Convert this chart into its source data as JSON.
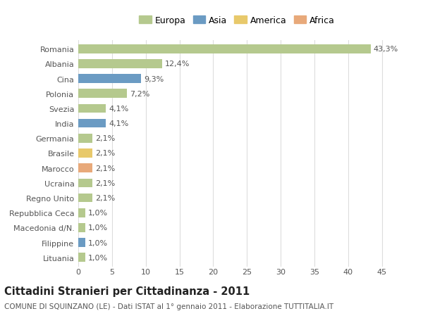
{
  "countries": [
    "Romania",
    "Albania",
    "Cina",
    "Polonia",
    "Svezia",
    "India",
    "Germania",
    "Brasile",
    "Marocco",
    "Ucraina",
    "Regno Unito",
    "Repubblica Ceca",
    "Macedonia d/N.",
    "Filippine",
    "Lituania"
  ],
  "values": [
    43.3,
    12.4,
    9.3,
    7.2,
    4.1,
    4.1,
    2.1,
    2.1,
    2.1,
    2.1,
    2.1,
    1.0,
    1.0,
    1.0,
    1.0
  ],
  "labels": [
    "43,3%",
    "12,4%",
    "9,3%",
    "7,2%",
    "4,1%",
    "4,1%",
    "2,1%",
    "2,1%",
    "2,1%",
    "2,1%",
    "2,1%",
    "1,0%",
    "1,0%",
    "1,0%",
    "1,0%"
  ],
  "colors": [
    "#b5c98e",
    "#b5c98e",
    "#6b9bc3",
    "#b5c98e",
    "#b5c98e",
    "#6b9bc3",
    "#b5c98e",
    "#e8c96b",
    "#e8a97a",
    "#b5c98e",
    "#b5c98e",
    "#b5c98e",
    "#b5c98e",
    "#6b9bc3",
    "#b5c98e"
  ],
  "legend_labels": [
    "Europa",
    "Asia",
    "America",
    "Africa"
  ],
  "legend_colors": [
    "#b5c98e",
    "#6b9bc3",
    "#e8c96b",
    "#e8a97a"
  ],
  "title": "Cittadini Stranieri per Cittadinanza - 2011",
  "subtitle": "COMUNE DI SQUINZANO (LE) - Dati ISTAT al 1° gennaio 2011 - Elaborazione TUTTITALIA.IT",
  "xlim": [
    0,
    47
  ],
  "xticks": [
    0,
    5,
    10,
    15,
    20,
    25,
    30,
    35,
    40,
    45
  ],
  "background_color": "#ffffff",
  "grid_color": "#dddddd",
  "bar_height": 0.6,
  "label_fontsize": 8.0,
  "tick_fontsize": 8.0,
  "title_fontsize": 10.5,
  "subtitle_fontsize": 7.5
}
